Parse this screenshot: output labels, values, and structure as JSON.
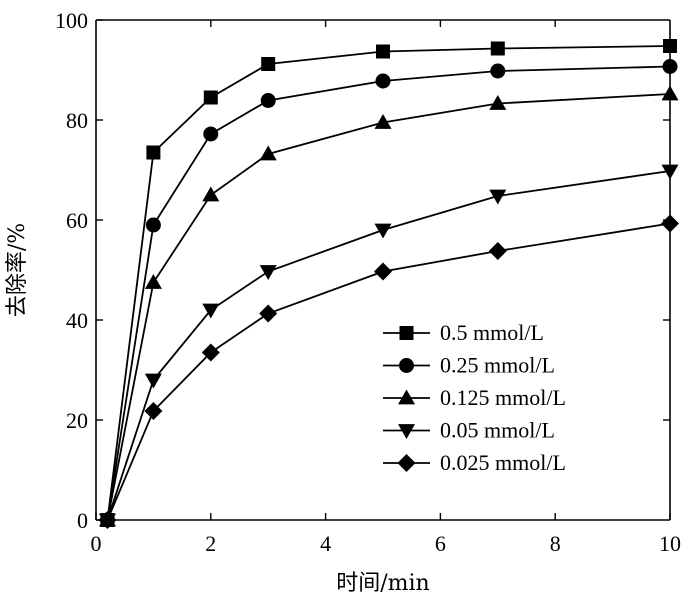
{
  "chart_data": {
    "type": "line",
    "xlabel": "时间/min",
    "ylabel": "去除率/%",
    "xlim": [
      0,
      10
    ],
    "ylim": [
      0,
      100
    ],
    "xticks": [
      0,
      2,
      4,
      6,
      8,
      10
    ],
    "yticks": [
      0,
      20,
      40,
      60,
      80,
      100
    ],
    "grid": false,
    "legend_position": "lower-right",
    "x": [
      0.2,
      1,
      2,
      3,
      5,
      7,
      10
    ],
    "series": [
      {
        "name": "0.5 mmol/L",
        "marker": "square",
        "values": [
          0,
          73.5,
          84.5,
          91.2,
          93.7,
          94.3,
          94.8
        ]
      },
      {
        "name": "0.25 mmol/L",
        "marker": "circle",
        "values": [
          0,
          59,
          77.2,
          83.9,
          87.8,
          89.8,
          90.7
        ]
      },
      {
        "name": "0.125 mmol/L",
        "marker": "triangle-up",
        "values": [
          0,
          47.5,
          65,
          73.2,
          79.5,
          83.3,
          85.2
        ]
      },
      {
        "name": "0.05 mmol/L",
        "marker": "triangle-down",
        "values": [
          0,
          28,
          42,
          49.7,
          58,
          64.8,
          69.8
        ]
      },
      {
        "name": "0.025 mmol/L",
        "marker": "diamond",
        "values": [
          0,
          21.8,
          33.5,
          41.3,
          49.7,
          53.8,
          59.3
        ]
      }
    ]
  }
}
